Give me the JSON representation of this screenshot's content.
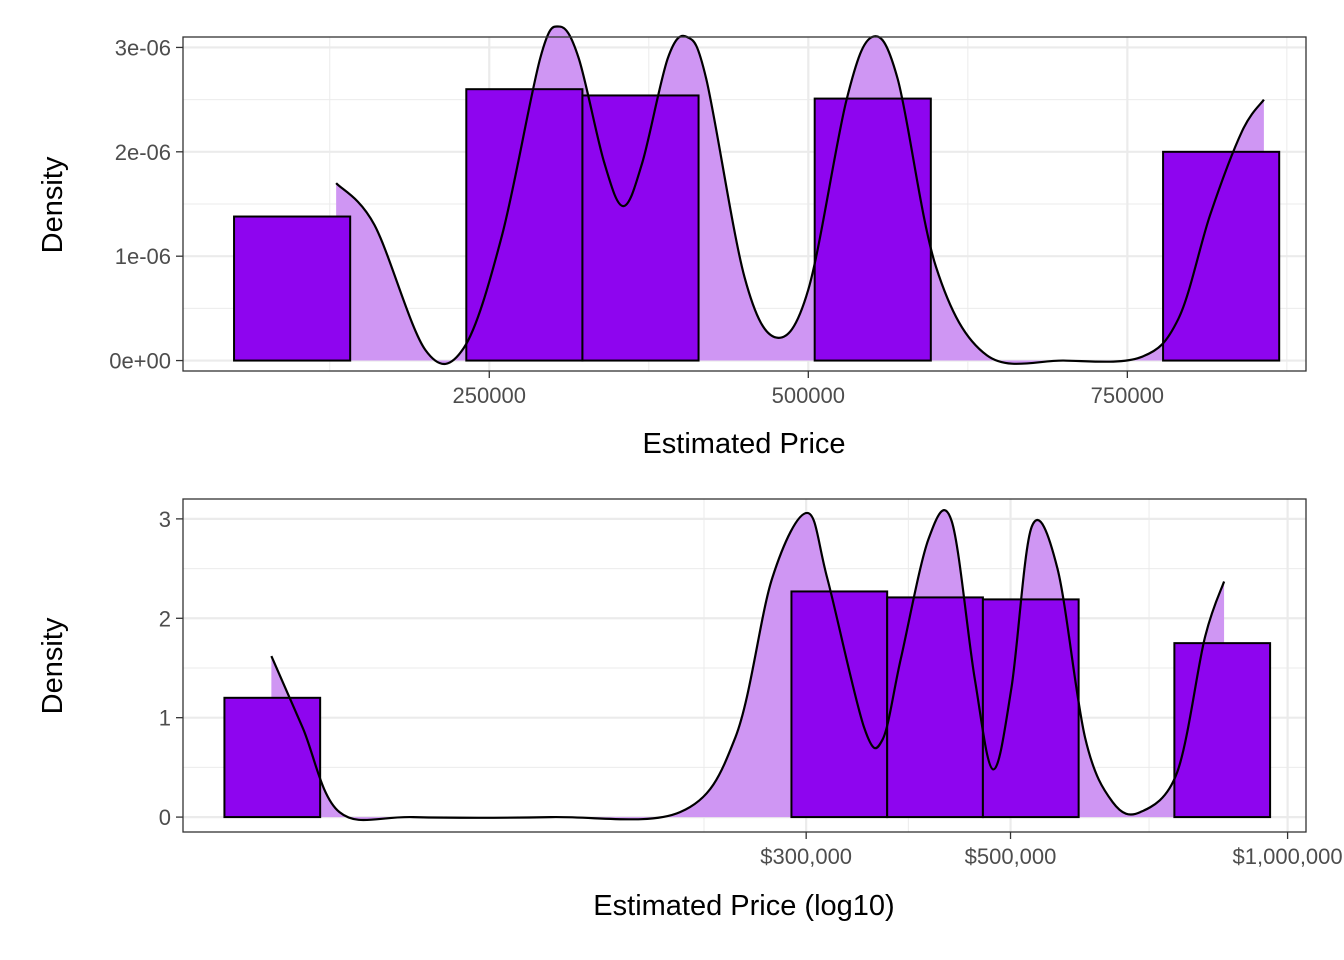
{
  "colors": {
    "bar_fill": "#8e05ef",
    "bar_stroke": "#000000",
    "density_fill": "#cf96f3",
    "density_line": "#000000",
    "grid": "#ebebeb",
    "panel_border": "#333333"
  },
  "chart_data": [
    {
      "type": "histogram+density",
      "xlabel": "Estimated Price",
      "ylabel": "Density",
      "x_scale": "linear",
      "xlim": [
        10000,
        890000
      ],
      "ylim": [
        -1e-07,
        3.1e-06
      ],
      "x_ticks": [
        250000,
        500000,
        750000
      ],
      "x_tick_labels": [
        "250000",
        "500000",
        "750000"
      ],
      "y_ticks": [
        0,
        1e-06,
        2e-06,
        3e-06
      ],
      "y_tick_labels": [
        "0e+00",
        "1e-06",
        "2e-06",
        "3e-06"
      ],
      "grid": true,
      "bins": [
        {
          "x0": 50000,
          "x1": 141000,
          "density": 1.38e-06
        },
        {
          "x0": 232000,
          "x1": 323000,
          "density": 2.6e-06
        },
        {
          "x0": 323000,
          "x1": 414000,
          "density": 2.54e-06
        },
        {
          "x0": 505000,
          "x1": 596000,
          "density": 2.51e-06
        },
        {
          "x0": 778000,
          "x1": 869000,
          "density": 2e-06
        }
      ],
      "density_curve": {
        "x": [
          130000,
          160000,
          200000,
          230000,
          260000,
          290000,
          305000,
          320000,
          340000,
          355000,
          370000,
          390000,
          405000,
          420000,
          450000,
          475000,
          500000,
          530000,
          550000,
          570000,
          600000,
          640000,
          700000,
          760000,
          790000,
          815000,
          840000,
          857000
        ],
        "y": [
          1.7e-06,
          1.3e-06,
          1e-07,
          1.2e-07,
          1.2e-06,
          2.9e-06,
          3.2e-06,
          2.9e-06,
          1.9e-06,
          1.48e-06,
          1.9e-06,
          2.9e-06,
          3.1e-06,
          2.7e-06,
          8e-07,
          2.2e-07,
          6.8e-07,
          2.5e-06,
          3.1e-06,
          2.7e-06,
          9e-07,
          5e-08,
          0.0,
          3e-08,
          4e-07,
          1.4e-06,
          2.2e-06,
          2.5e-06
        ]
      }
    },
    {
      "type": "histogram+density",
      "xlabel": "Estimated Price (log10)",
      "ylabel": "Density",
      "x_scale": "log10",
      "xlim": [
        4.8,
        6.02
      ],
      "ylim": [
        -0.15,
        3.2
      ],
      "x_ticks": [
        5.477,
        5.699,
        6.0
      ],
      "x_tick_labels": [
        "$300,000",
        "$500,000",
        "$1,000,000"
      ],
      "y_ticks": [
        0,
        1,
        2,
        3
      ],
      "y_tick_labels": [
        "0",
        "1",
        "2",
        "3"
      ],
      "grid": true,
      "bins": [
        {
          "x0": 4.845,
          "x1": 4.949,
          "density": 1.2
        },
        {
          "x0": 5.461,
          "x1": 5.565,
          "density": 2.27
        },
        {
          "x0": 5.565,
          "x1": 5.669,
          "density": 2.21
        },
        {
          "x0": 5.669,
          "x1": 5.773,
          "density": 2.19
        },
        {
          "x0": 5.877,
          "x1": 5.981,
          "density": 1.75
        }
      ],
      "density_curve": {
        "x": [
          4.896,
          4.93,
          4.97,
          5.05,
          5.2,
          5.34,
          5.4,
          5.44,
          5.478,
          5.5,
          5.54,
          5.56,
          5.58,
          5.61,
          5.635,
          5.66,
          5.68,
          5.7,
          5.722,
          5.75,
          5.78,
          5.81,
          5.84,
          5.88,
          5.91,
          5.931
        ],
        "y": [
          1.62,
          0.9,
          0.05,
          0.0,
          0.0,
          0.05,
          0.8,
          2.4,
          3.06,
          2.4,
          0.9,
          0.78,
          1.6,
          2.8,
          2.98,
          1.4,
          0.48,
          1.3,
          2.92,
          2.5,
          0.8,
          0.15,
          0.05,
          0.45,
          1.8,
          2.37
        ]
      }
    }
  ]
}
